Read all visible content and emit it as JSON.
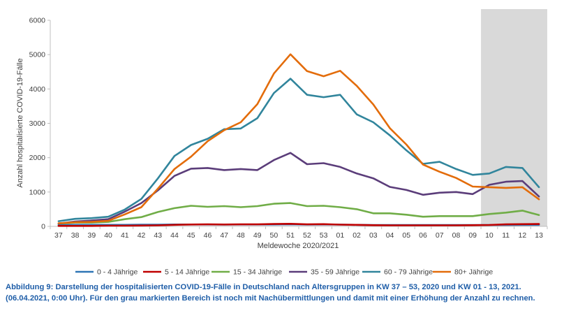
{
  "caption": "Abbildung 9: Darstellung der hospitalisierten COVID-19-Fälle in Deutschland nach Altersgruppen in KW 37 – 53, 2020 und KW 01 - 13, 2021. (06.04.2021, 0:00 Uhr). Für den grau markierten Bereich ist noch mit Nachübermittlungen und damit mit einer Erhöhung der Anzahl zu rechnen.",
  "chart_data": {
    "type": "line",
    "title": "",
    "xlabel": "Meldewoche 2020/2021",
    "ylabel": "Anzahl hospitalisierte COVID-19-Fälle",
    "ylim": [
      0,
      6000
    ],
    "yticks": [
      "0",
      "1000",
      "2000",
      "3000",
      "4000",
      "5000",
      "6000"
    ],
    "categories": [
      "37",
      "38",
      "39",
      "40",
      "41",
      "42",
      "43",
      "44",
      "45",
      "46",
      "47",
      "48",
      "49",
      "50",
      "51",
      "52",
      "53",
      "01",
      "02",
      "03",
      "04",
      "05",
      "06",
      "07",
      "08",
      "09",
      "10",
      "11",
      "12",
      "13"
    ],
    "shaded_region": {
      "from": "10",
      "to": "13",
      "color": "#d9d9d9"
    },
    "grid": false,
    "legend_position": "bottom",
    "series": [
      {
        "name": "0 - 4 Jährige",
        "color": "#2e75b6",
        "values": [
          40,
          45,
          45,
          45,
          45,
          50,
          50,
          55,
          55,
          55,
          50,
          55,
          55,
          55,
          60,
          50,
          55,
          50,
          45,
          40,
          40,
          40,
          40,
          40,
          40,
          40,
          40,
          40,
          45,
          45
        ]
      },
      {
        "name": "5 - 14 Jährige",
        "color": "#c00000",
        "values": [
          15,
          15,
          15,
          20,
          20,
          25,
          30,
          45,
          55,
          60,
          55,
          60,
          60,
          70,
          75,
          60,
          65,
          50,
          45,
          35,
          30,
          30,
          30,
          30,
          30,
          35,
          40,
          60,
          65,
          70
        ]
      },
      {
        "name": "15 - 34 Jährige",
        "color": "#70ad47",
        "values": [
          80,
          110,
          110,
          130,
          210,
          270,
          420,
          530,
          600,
          570,
          590,
          560,
          590,
          660,
          680,
          590,
          600,
          560,
          500,
          380,
          380,
          340,
          280,
          300,
          300,
          300,
          360,
          400,
          460,
          330
        ]
      },
      {
        "name": "35 - 59 Jährige",
        "color": "#5b3d7a",
        "values": [
          80,
          140,
          170,
          210,
          430,
          680,
          1050,
          1470,
          1680,
          1700,
          1640,
          1670,
          1640,
          1930,
          2140,
          1810,
          1840,
          1730,
          1540,
          1400,
          1150,
          1060,
          920,
          980,
          1000,
          940,
          1210,
          1300,
          1320,
          870
        ]
      },
      {
        "name": "60 - 79 Jährige",
        "color": "#31859c",
        "values": [
          150,
          220,
          240,
          280,
          490,
          800,
          1400,
          2050,
          2370,
          2550,
          2830,
          2850,
          3150,
          3880,
          4300,
          3830,
          3760,
          3830,
          3260,
          3030,
          2650,
          2210,
          1820,
          1880,
          1670,
          1500,
          1540,
          1730,
          1700,
          1140
        ]
      },
      {
        "name": "80+ Jährige",
        "color": "#e36c0a",
        "values": [
          90,
          120,
          130,
          160,
          350,
          560,
          1100,
          1670,
          2030,
          2480,
          2800,
          3030,
          3560,
          4450,
          5010,
          4520,
          4370,
          4530,
          4090,
          3550,
          2860,
          2380,
          1800,
          1590,
          1410,
          1160,
          1140,
          1120,
          1140,
          790
        ]
      }
    ]
  }
}
